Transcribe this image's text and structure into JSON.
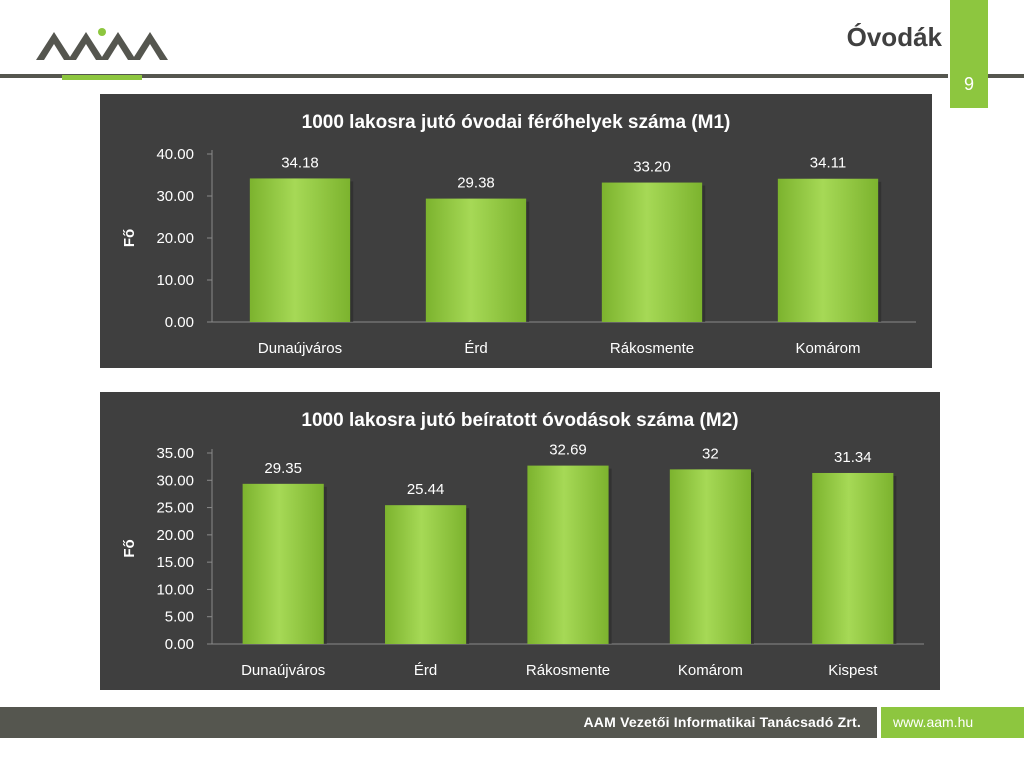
{
  "header": {
    "title": "Óvodák",
    "page_number": "9",
    "logo_icon": "aam-logo-icon"
  },
  "footer": {
    "company": "AAM Vezetői Informatikai Tanácsadó Zrt.",
    "website": "www.aam.hu"
  },
  "colors": {
    "accent": "#8dc63f",
    "bar": "#8dc63f",
    "panel": "#3f3f3f",
    "dark_bar": "#55564f"
  },
  "chart_data": [
    {
      "type": "bar",
      "title": "1000 lakosra jutó óvodai férőhelyek száma (M1)",
      "ylabel": "Fő",
      "xlabel": "",
      "categories": [
        "Dunaújváros",
        "Érd",
        "Rákosmente",
        "Komárom"
      ],
      "values": [
        34.18,
        29.38,
        33.2,
        34.11
      ],
      "value_labels": [
        "34.18",
        "29.38",
        "33.20",
        "34.11"
      ],
      "ylim": [
        0,
        40
      ],
      "yticks": [
        "0.00",
        "10.00",
        "20.00",
        "30.00",
        "40.00"
      ],
      "grid": false,
      "legend": "none"
    },
    {
      "type": "bar",
      "title": "1000 lakosra jutó beíratott óvodások száma (M2)",
      "ylabel": "Fő",
      "xlabel": "",
      "categories": [
        "Dunaújváros",
        "Érd",
        "Rákosmente",
        "Komárom",
        "Kispest"
      ],
      "values": [
        29.35,
        25.44,
        32.69,
        32,
        31.34
      ],
      "value_labels": [
        "29.35",
        "25.44",
        "32.69",
        "32",
        "31.34"
      ],
      "ylim": [
        0,
        35
      ],
      "yticks": [
        "0.00",
        "5.00",
        "10.00",
        "15.00",
        "20.00",
        "25.00",
        "30.00",
        "35.00"
      ],
      "grid": false,
      "legend": "none"
    }
  ]
}
